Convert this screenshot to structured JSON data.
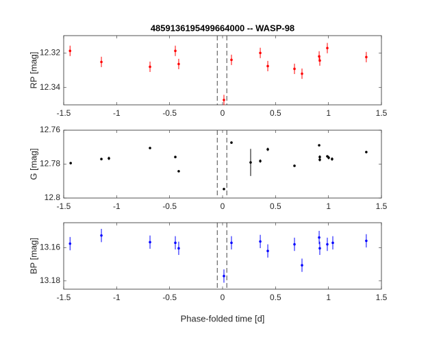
{
  "chart_data": [
    {
      "type": "scatter",
      "title": "4859136195499664000 -- WASP-98",
      "ylabel": "RP [mag]",
      "color": "#ff0000",
      "x": [
        -1.44,
        -1.144,
        -0.685,
        -0.446,
        -0.414,
        0.013,
        0.084,
        0.356,
        0.427,
        0.679,
        0.75,
        0.912,
        0.918,
        0.989,
        1.357
      ],
      "values": [
        12.3188,
        12.3252,
        12.328,
        12.3188,
        12.3264,
        12.3472,
        12.324,
        12.32,
        12.3276,
        12.3292,
        12.332,
        12.322,
        12.3244,
        12.3172,
        12.3224
      ],
      "errors": [
        0.003,
        0.003,
        0.003,
        0.003,
        0.003,
        0.003,
        0.003,
        0.003,
        0.003,
        0.003,
        0.003,
        0.003,
        0.003,
        0.003,
        0.003
      ],
      "xlim": [
        -1.5,
        1.5
      ],
      "xticks": [
        -1.5,
        -1,
        -0.5,
        0,
        0.5,
        1,
        1.5
      ],
      "ylim": [
        12.31,
        12.35
      ],
      "yticks": [
        12.32,
        12.34
      ],
      "y_inverted": true,
      "vlines": [
        -0.05,
        0.04
      ]
    },
    {
      "type": "scatter",
      "ylabel": "G [mag]",
      "color": "#000000",
      "x": [
        -1.434,
        -1.144,
        -1.073,
        -0.685,
        -0.446,
        -0.414,
        0.013,
        0.084,
        0.265,
        0.356,
        0.427,
        0.679,
        0.912,
        0.918,
        0.918,
        0.989,
        1.002,
        1.034,
        1.357
      ],
      "values": [
        12.7794,
        12.777,
        12.7766,
        12.7705,
        12.7758,
        12.7842,
        12.7947,
        12.7673,
        12.779,
        12.7782,
        12.7713,
        12.781,
        12.7689,
        12.7758,
        12.7774,
        12.7754,
        12.7762,
        12.777,
        12.7729
      ],
      "errors": [
        0.0005,
        0.0005,
        0.001,
        0.0005,
        0.0005,
        0.0005,
        0.0005,
        0.0005,
        0.008,
        0.001,
        0.001,
        0.0005,
        0.0005,
        0.001,
        0.001,
        0.0005,
        0.001,
        0.001,
        0.0005
      ],
      "xlim": [
        -1.5,
        1.5
      ],
      "xticks": [
        -1.5,
        -1,
        -0.5,
        0,
        0.5,
        1,
        1.5
      ],
      "ylim": [
        12.76,
        12.8
      ],
      "yticks": [
        12.76,
        12.78,
        12.8
      ],
      "y_inverted": true,
      "vlines": [
        -0.05,
        0.04
      ]
    },
    {
      "type": "scatter",
      "ylabel": "BP [mag]",
      "xlabel": "Phase-folded time [d]",
      "color": "#0000ff",
      "x": [
        -1.44,
        -1.144,
        -0.685,
        -0.446,
        -0.414,
        0.013,
        0.084,
        0.356,
        0.427,
        0.679,
        0.75,
        0.912,
        0.918,
        0.989,
        1.041,
        1.357
      ],
      "values": [
        13.1576,
        13.1527,
        13.1567,
        13.1571,
        13.1604,
        13.1771,
        13.1571,
        13.1563,
        13.162,
        13.158,
        13.1706,
        13.1539,
        13.1604,
        13.158,
        13.1571,
        13.1559
      ],
      "errors": [
        0.004,
        0.004,
        0.004,
        0.004,
        0.004,
        0.004,
        0.004,
        0.004,
        0.004,
        0.004,
        0.004,
        0.004,
        0.004,
        0.004,
        0.004,
        0.004
      ],
      "xlim": [
        -1.5,
        1.5
      ],
      "xticks": [
        -1.5,
        -1,
        -0.5,
        0,
        0.5,
        1,
        1.5
      ],
      "ylim": [
        13.145,
        13.185
      ],
      "yticks": [
        13.16,
        13.18
      ],
      "y_inverted": true,
      "vlines": [
        -0.05,
        0.04
      ]
    }
  ]
}
